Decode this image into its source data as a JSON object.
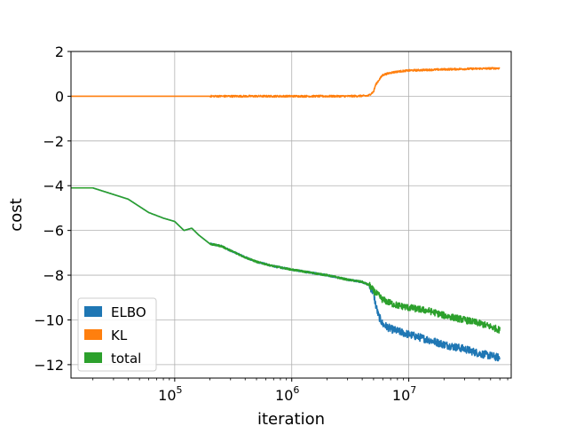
{
  "chart_data": {
    "type": "line",
    "title": "",
    "xlabel": "iteration",
    "ylabel": "cost",
    "xscale": "log",
    "xlim": [
      13000,
      75000000
    ],
    "ylim": [
      -12.6,
      2
    ],
    "x_ticks": [
      {
        "value": 100000,
        "base": "10",
        "exp": "5"
      },
      {
        "value": 1000000,
        "base": "10",
        "exp": "6"
      },
      {
        "value": 10000000,
        "base": "10",
        "exp": "7"
      }
    ],
    "y_ticks": [
      {
        "value": 2,
        "label": "2"
      },
      {
        "value": 0,
        "label": "0"
      },
      {
        "value": -2,
        "label": "−2"
      },
      {
        "value": -4,
        "label": "−4"
      },
      {
        "value": -6,
        "label": "−6"
      },
      {
        "value": -8,
        "label": "−8"
      },
      {
        "value": -10,
        "label": "−10"
      },
      {
        "value": -12,
        "label": "−12"
      }
    ],
    "grid": true,
    "legend_position": "lower-left",
    "series": [
      {
        "name": "ELBO",
        "color": "#1f77b4",
        "x": [
          13000,
          20000,
          40000,
          60000,
          80000,
          100000,
          120000,
          140000,
          160000,
          200000,
          250000,
          300000,
          400000,
          500000,
          700000,
          1000000,
          1500000,
          2000000,
          3000000,
          4000000,
          4600000,
          5000000,
          5200000,
          5500000,
          6000000,
          7000000,
          8000000,
          10000000,
          15000000,
          20000000,
          30000000,
          40000000,
          50000000,
          60000000
        ],
        "values": [
          -4.1,
          -4.1,
          -4.6,
          -5.2,
          -5.45,
          -5.6,
          -6.0,
          -5.9,
          -6.2,
          -6.6,
          -6.7,
          -6.9,
          -7.2,
          -7.4,
          -7.6,
          -7.75,
          -7.9,
          -8.0,
          -8.2,
          -8.3,
          -8.45,
          -8.8,
          -9.3,
          -9.8,
          -10.2,
          -10.4,
          -10.5,
          -10.65,
          -10.9,
          -11.1,
          -11.3,
          -11.5,
          -11.6,
          -11.7
        ],
        "noise": 0.35
      },
      {
        "name": "KL",
        "color": "#ff7f0e",
        "x": [
          13000,
          100000,
          1000000,
          3000000,
          4500000,
          5000000,
          5200000,
          5600000,
          6000000,
          7000000,
          8000000,
          10000000,
          20000000,
          30000000,
          60000000
        ],
        "values": [
          0,
          0,
          0,
          0,
          0.02,
          0.2,
          0.5,
          0.75,
          0.95,
          1.05,
          1.1,
          1.15,
          1.2,
          1.22,
          1.25
        ],
        "noise": 0.08
      },
      {
        "name": "total",
        "color": "#2ca02c",
        "x": [
          13000,
          20000,
          40000,
          60000,
          80000,
          100000,
          120000,
          140000,
          160000,
          200000,
          250000,
          300000,
          400000,
          500000,
          700000,
          1000000,
          1500000,
          2000000,
          3000000,
          4000000,
          4600000,
          5000000,
          5500000,
          6000000,
          7000000,
          8000000,
          10000000,
          15000000,
          20000000,
          30000000,
          40000000,
          50000000,
          60000000
        ],
        "values": [
          -4.1,
          -4.1,
          -4.6,
          -5.2,
          -5.45,
          -5.6,
          -6.0,
          -5.9,
          -6.2,
          -6.6,
          -6.7,
          -6.9,
          -7.2,
          -7.4,
          -7.6,
          -7.75,
          -7.9,
          -8.0,
          -8.2,
          -8.3,
          -8.45,
          -8.7,
          -8.9,
          -9.1,
          -9.25,
          -9.35,
          -9.45,
          -9.6,
          -9.8,
          -10.0,
          -10.15,
          -10.3,
          -10.45
        ],
        "noise": 0.3
      }
    ]
  }
}
